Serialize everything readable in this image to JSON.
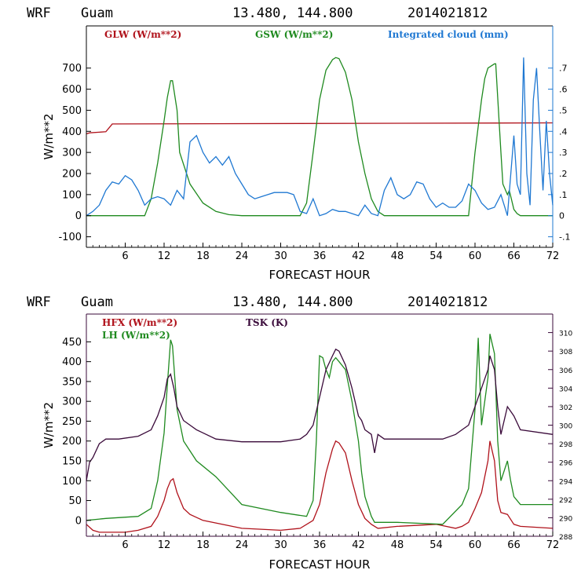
{
  "colors": {
    "red": "#b0121b",
    "green": "#1f8a1f",
    "blue": "#1f78d2",
    "purple": "#3a0a3a",
    "axis": "#000000"
  },
  "chart_data": [
    {
      "type": "line",
      "header": {
        "model": "WRF",
        "site": "Guam",
        "coords": "13.480, 144.800",
        "init": "2014021812"
      },
      "xlabel": "FORECAST HOUR",
      "ylabel": "W/m**2",
      "xlim": [
        0,
        72
      ],
      "ylim": [
        -150,
        900
      ],
      "y2lim": [
        -0.15,
        0.9
      ],
      "xticks": [
        6,
        12,
        18,
        24,
        30,
        36,
        42,
        48,
        54,
        60,
        66,
        72
      ],
      "yticks": [
        -100,
        0,
        100,
        200,
        300,
        400,
        500,
        600,
        700
      ],
      "y2ticks": [
        {
          "v": -0.1,
          "label": "-.1"
        },
        {
          "v": 0,
          "label": "0"
        },
        {
          "v": 0.1,
          "label": ".1"
        },
        {
          "v": 0.2,
          "label": ".2"
        },
        {
          "v": 0.3,
          "label": ".3"
        },
        {
          "v": 0.4,
          "label": ".4"
        },
        {
          "v": 0.5,
          "label": ".5"
        },
        {
          "v": 0.6,
          "label": ".6"
        },
        {
          "v": 0.7,
          "label": ".7"
        }
      ],
      "series": [
        {
          "name": "GLW (W/m**2)",
          "color": "red",
          "axis": "left",
          "x": [
            0,
            0.5,
            3,
            4,
            72
          ],
          "y": [
            388,
            393,
            398,
            435,
            440
          ]
        },
        {
          "name": "GSW (W/m**2)",
          "color": "green",
          "axis": "left",
          "x": [
            0,
            9,
            10,
            11,
            12,
            12.5,
            13,
            13.3,
            14,
            14.4,
            16,
            18,
            20,
            22,
            24,
            25,
            33,
            34,
            35,
            36,
            37,
            38,
            38.5,
            39,
            40,
            41,
            42,
            43,
            44,
            45,
            46,
            59,
            60,
            61,
            61.5,
            62,
            63,
            63.2,
            64,
            64.3,
            65,
            65.3,
            66,
            66.5,
            67,
            72
          ],
          "y": [
            0,
            0,
            80,
            250,
            450,
            560,
            640,
            640,
            500,
            300,
            150,
            60,
            20,
            5,
            0,
            0,
            0,
            60,
            300,
            550,
            690,
            740,
            750,
            745,
            680,
            550,
            350,
            200,
            80,
            20,
            0,
            0,
            300,
            550,
            650,
            700,
            720,
            720,
            300,
            150,
            100,
            120,
            30,
            10,
            0,
            0
          ]
        },
        {
          "name": "Integrated cloud (mm)",
          "color": "blue",
          "axis": "right",
          "x": [
            0,
            1,
            2,
            3,
            4,
            5,
            6,
            7,
            8,
            9,
            10,
            11,
            12,
            13,
            14,
            15,
            16,
            17,
            18,
            19,
            20,
            21,
            22,
            23,
            24,
            25,
            26,
            27,
            28,
            29,
            30,
            31,
            32,
            33,
            34,
            35,
            36,
            37,
            38,
            39,
            40,
            41,
            42,
            43,
            44,
            45,
            46,
            47,
            48,
            49,
            50,
            51,
            52,
            53,
            54,
            55,
            56,
            57,
            58,
            59,
            60,
            61,
            62,
            63,
            64,
            65,
            66,
            66.5,
            67,
            67.5,
            68,
            68.5,
            69,
            69.5,
            70,
            70.5,
            71,
            71.5,
            72
          ],
          "y": [
            0,
            0.02,
            0.05,
            0.12,
            0.16,
            0.15,
            0.19,
            0.17,
            0.12,
            0.05,
            0.08,
            0.09,
            0.08,
            0.05,
            0.12,
            0.08,
            0.35,
            0.38,
            0.3,
            0.25,
            0.28,
            0.24,
            0.28,
            0.2,
            0.15,
            0.1,
            0.08,
            0.09,
            0.1,
            0.11,
            0.11,
            0.11,
            0.1,
            0.02,
            0.01,
            0.08,
            0.0,
            0.01,
            0.03,
            0.02,
            0.02,
            0.01,
            0.0,
            0.05,
            0.01,
            0.0,
            0.12,
            0.18,
            0.1,
            0.08,
            0.1,
            0.16,
            0.15,
            0.08,
            0.04,
            0.06,
            0.04,
            0.04,
            0.07,
            0.15,
            0.12,
            0.06,
            0.03,
            0.04,
            0.1,
            0.0,
            0.38,
            0.15,
            0.1,
            0.75,
            0.2,
            0.05,
            0.55,
            0.7,
            0.4,
            0.12,
            0.45,
            0.2,
            0.05
          ]
        }
      ]
    },
    {
      "type": "line",
      "header": {
        "model": "WRF",
        "site": "Guam",
        "coords": "13.480, 144.800",
        "init": "2014021812"
      },
      "xlabel": "FORECAST HOUR",
      "ylabel": "W/m**2",
      "xlim": [
        0,
        72
      ],
      "ylim": [
        -40,
        520
      ],
      "y2lim": [
        288,
        312
      ],
      "xticks": [
        6,
        12,
        18,
        24,
        30,
        36,
        42,
        48,
        54,
        60,
        66,
        72
      ],
      "yticks": [
        0,
        50,
        100,
        150,
        200,
        250,
        300,
        350,
        400,
        450
      ],
      "y2ticks": [
        {
          "v": 288,
          "label": "288"
        },
        {
          "v": 290,
          "label": "290"
        },
        {
          "v": 292,
          "label": "292"
        },
        {
          "v": 294,
          "label": "294"
        },
        {
          "v": 296,
          "label": "296"
        },
        {
          "v": 298,
          "label": "298"
        },
        {
          "v": 300,
          "label": "300"
        },
        {
          "v": 302,
          "label": "302"
        },
        {
          "v": 304,
          "label": "304"
        },
        {
          "v": 306,
          "label": "306"
        },
        {
          "v": 308,
          "label": "308"
        },
        {
          "v": 310,
          "label": "310"
        }
      ],
      "series": [
        {
          "name": "HFX (W/m**2)",
          "color": "red",
          "axis": "left",
          "x": [
            0,
            1,
            2,
            6,
            8,
            10,
            11,
            12,
            12.5,
            13,
            13.4,
            14,
            15,
            16,
            18,
            24,
            30,
            33,
            35,
            36,
            37,
            38,
            38.5,
            39,
            40,
            41,
            42,
            43,
            44,
            45,
            48,
            54,
            57,
            58,
            59,
            60,
            61,
            62,
            62.3,
            63,
            63.5,
            64,
            65,
            66,
            67,
            72
          ],
          "y": [
            -10,
            -25,
            -30,
            -30,
            -25,
            -15,
            10,
            50,
            80,
            100,
            105,
            70,
            30,
            15,
            0,
            -20,
            -25,
            -20,
            0,
            40,
            120,
            180,
            200,
            195,
            170,
            100,
            40,
            5,
            -10,
            -20,
            -15,
            -10,
            -20,
            -15,
            -5,
            30,
            70,
            150,
            200,
            150,
            50,
            20,
            15,
            -10,
            -15,
            -20
          ]
        },
        {
          "name": "LH (W/m**2)",
          "color": "green",
          "axis": "left",
          "x": [
            0,
            3,
            8,
            10,
            11,
            12,
            12.5,
            13,
            13.3,
            14,
            15,
            17,
            20,
            24,
            30,
            34,
            35,
            35.5,
            36,
            36.5,
            37,
            37.5,
            38,
            38.5,
            39,
            40,
            41,
            42,
            42.5,
            43,
            44,
            44.5,
            45,
            48,
            55,
            58,
            59,
            60,
            60.5,
            61,
            62,
            62.3,
            63,
            63.5,
            64,
            65,
            65.5,
            66,
            67,
            72
          ],
          "y": [
            0,
            5,
            10,
            30,
            100,
            220,
            340,
            455,
            440,
            280,
            200,
            150,
            110,
            40,
            20,
            10,
            50,
            200,
            415,
            410,
            380,
            360,
            400,
            410,
            400,
            380,
            300,
            200,
            120,
            60,
            10,
            -5,
            -5,
            -5,
            -10,
            40,
            80,
            280,
            460,
            240,
            360,
            470,
            420,
            200,
            100,
            150,
            100,
            60,
            40,
            40
          ]
        },
        {
          "name": "TSK (K)",
          "color": "purple",
          "axis": "right",
          "x": [
            0,
            0.5,
            1,
            2,
            3,
            5,
            8,
            10,
            11,
            12,
            12.5,
            13,
            13.5,
            14,
            15,
            16,
            17,
            20,
            24,
            30,
            33,
            34,
            35,
            36,
            37,
            38,
            38.5,
            39,
            40,
            41,
            42,
            42.5,
            43,
            44,
            44.5,
            45,
            46,
            48,
            55,
            57,
            58,
            59,
            60,
            61,
            62,
            62.3,
            63,
            63.5,
            64,
            65,
            66,
            67,
            72
          ],
          "y": [
            294,
            296,
            296.5,
            298,
            298.5,
            298.5,
            298.8,
            299.5,
            301,
            303,
            305,
            305.5,
            304,
            302,
            300.5,
            300,
            299.5,
            298.5,
            298.2,
            298.2,
            298.5,
            299,
            300,
            303,
            306,
            307.5,
            308.2,
            308,
            306.5,
            304,
            301,
            300.5,
            299.5,
            299,
            297,
            299,
            298.5,
            298.5,
            298.5,
            299,
            299.5,
            300,
            302,
            304,
            306,
            307.5,
            306,
            302,
            299,
            302,
            301,
            299.5,
            299
          ]
        }
      ]
    }
  ],
  "legend_top": [
    {
      "label": "GLW (W/m**2)",
      "color": "red"
    },
    {
      "label": "GSW (W/m**2)",
      "color": "green"
    },
    {
      "label": "Integrated cloud (mm)",
      "color": "blue"
    }
  ],
  "legend_bottom": [
    {
      "label": "HFX (W/m**2)",
      "color": "red"
    },
    {
      "label": "LH  (W/m**2)",
      "color": "green"
    },
    {
      "label": "TSK (K)",
      "color": "purple"
    }
  ]
}
